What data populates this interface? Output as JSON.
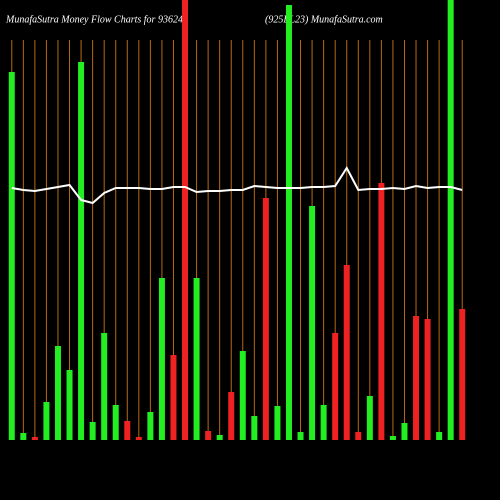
{
  "chart_data": {
    "type": "bar",
    "title": "MunafaSutra  Money Flow  Charts for 936246",
    "subtitle": "(925EL23) MunafaSutra.com",
    "categories": [
      null,
      null,
      null,
      null,
      null,
      null,
      null,
      null,
      null,
      null,
      null,
      null,
      null,
      null,
      null,
      null,
      null,
      null,
      null,
      null,
      null,
      null,
      null,
      null,
      null,
      null,
      null,
      null,
      null,
      null,
      null,
      null,
      null,
      null,
      null,
      null,
      null,
      null,
      null,
      null
    ],
    "values": [
      368,
      7,
      3,
      38,
      94,
      70,
      378,
      18,
      107,
      35,
      19,
      3,
      28,
      162,
      85,
      440,
      162,
      9,
      5,
      48,
      89,
      24,
      242,
      34,
      435,
      8,
      234,
      35,
      107,
      175,
      8,
      44,
      257,
      4,
      17,
      124,
      121,
      8,
      440,
      131
    ],
    "colors": [
      "#22ee22",
      "#22ee22",
      "#ee2222",
      "#22ee22",
      "#22ee22",
      "#22ee22",
      "#22ee22",
      "#22ee22",
      "#22ee22",
      "#22ee22",
      "#ee2222",
      "#ee2222",
      "#22ee22",
      "#22ee22",
      "#ee2222",
      "#ee2222",
      "#22ee22",
      "#ee2222",
      "#22ee22",
      "#ee2222",
      "#22ee22",
      "#22ee22",
      "#ee2222",
      "#22ee22",
      "#22ee22",
      "#22ee22",
      "#22ee22",
      "#22ee22",
      "#ee2222",
      "#ee2222",
      "#ee2222",
      "#22ee22",
      "#ee2222",
      "#22ee22",
      "#22ee22",
      "#ee2222",
      "#ee2222",
      "#22ee22",
      "#22ee22",
      "#ee2222"
    ],
    "line_values": [
      252,
      250,
      249,
      251,
      253,
      255,
      240,
      237,
      247,
      252,
      252,
      252,
      251,
      251,
      253,
      253,
      248,
      249,
      249,
      250,
      250,
      254,
      253,
      252,
      252,
      252,
      253,
      253,
      254,
      272,
      250,
      251,
      251,
      252,
      251,
      254,
      252,
      253,
      253,
      250
    ],
    "line_color": "#ffffff",
    "grid_color": "#b86a10",
    "ylim": [
      0,
      440
    ]
  }
}
